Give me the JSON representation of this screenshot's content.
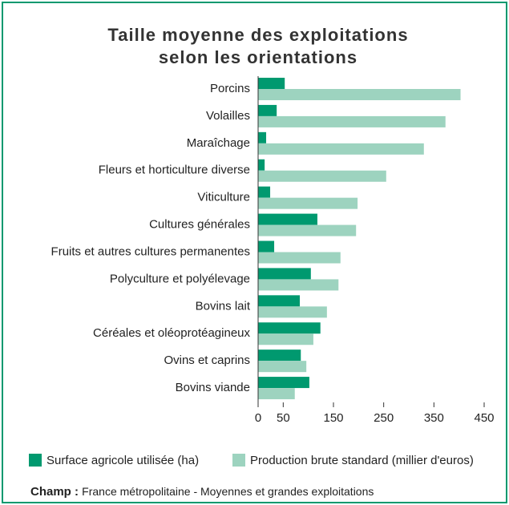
{
  "chart_data": {
    "type": "hbar",
    "title": [
      "Taille moyenne des exploitations",
      "selon les orientations"
    ],
    "categories": [
      "Porcins",
      "Volailles",
      "Maraîchage",
      "Fleurs et horticulture diverse",
      "Viticulture",
      "Cultures générales",
      "Fruits et autres cultures permanentes",
      "Polyculture et polyélevage",
      "Bovins lait",
      "Céréales et oléoprotéagineux",
      "Ovins et caprins",
      "Bovins viande"
    ],
    "series": [
      {
        "name": "Surface agricole utilisée (ha)",
        "color": "#00996f",
        "values": [
          53,
          37,
          16,
          13,
          24,
          118,
          32,
          105,
          83,
          124,
          85,
          102
        ]
      },
      {
        "name": "Production brute standard (millier d'euros)",
        "color": "#9dd3bf",
        "values": [
          403,
          373,
          330,
          255,
          198,
          195,
          164,
          160,
          137,
          110,
          96,
          73
        ]
      }
    ],
    "xlim": [
      0,
      450
    ],
    "xticks": [
      0,
      50,
      150,
      250,
      350,
      450
    ],
    "footnote": {
      "label": "Champ :",
      "text": "France métropolitaine - Moyennes et grandes exploitations"
    }
  }
}
